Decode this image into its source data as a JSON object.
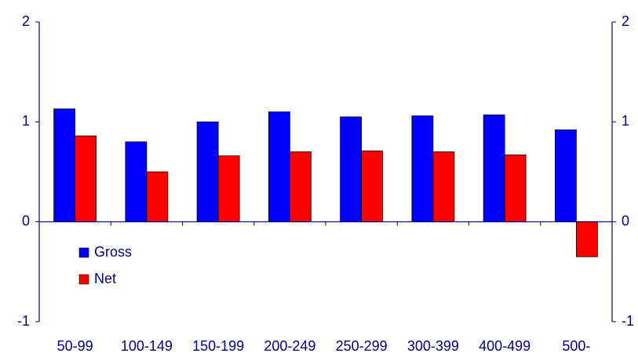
{
  "chart_data": {
    "type": "bar",
    "categories": [
      "50-99",
      "100-149",
      "150-199",
      "200-249",
      "250-299",
      "300-399",
      "400-499",
      "500-"
    ],
    "series": [
      {
        "name": "Gross",
        "color": "#0000ff",
        "values": [
          1.13,
          0.8,
          1.0,
          1.1,
          1.05,
          1.06,
          1.07,
          0.92
        ]
      },
      {
        "name": "Net",
        "color": "#ff0000",
        "values": [
          0.86,
          0.5,
          0.66,
          0.7,
          0.71,
          0.7,
          0.67,
          -0.35
        ]
      }
    ],
    "ylim": [
      -1,
      2
    ],
    "yticks": [
      -1,
      0,
      1,
      2
    ],
    "y2lim": [
      -1,
      2
    ],
    "y2ticks": [
      -1,
      0,
      1,
      2
    ]
  }
}
